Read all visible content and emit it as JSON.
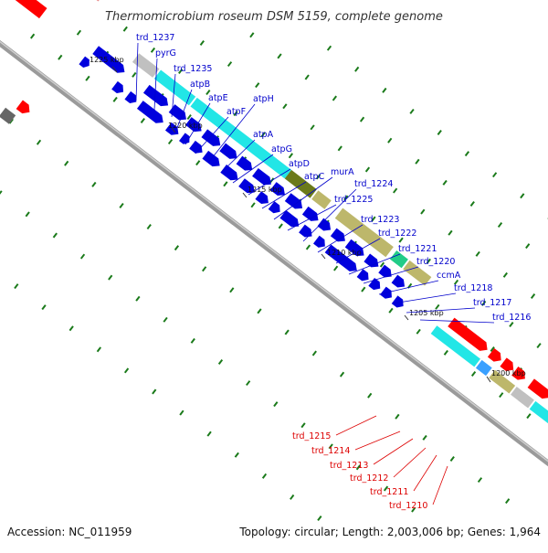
{
  "title": "Thermomicrobium roseum DSM 5159, complete genome",
  "accession": "Accession: NC_011959",
  "topology": "Topology: circular; Length: 2,003,006 bp; Genes: 1,964",
  "colors": {
    "forward_genes": "#0000dd",
    "reverse_genes": "#ff0000",
    "cyan_feature": "#22e6e6",
    "olive_feature": "#6b7a1a",
    "khaki_feature": "#bdb76b",
    "gray_feature": "#c0c0c0",
    "label_upper": "#0000cc",
    "label_lower": "#dd0000",
    "backbone": "#888888",
    "tick_marks": "#1a7a1a"
  },
  "ticks": [
    "1225 kbp",
    "1220 kbp",
    "1215 kbp",
    "1210 kbp",
    "1205 kbp",
    "1200 kbp"
  ],
  "upper_labels": [
    "trd_1237",
    "pyrG",
    "trd_1235",
    "atpB",
    "atpE",
    "atpF",
    "atpH",
    "atpA",
    "atpG",
    "atpD",
    "atpC",
    "murA",
    "trd_1225",
    "trd_1224",
    "trd_1223",
    "trd_1222",
    "trd_1221",
    "trd_1220",
    "ccmA",
    "trd_1218",
    "trd_1217",
    "trd_1216"
  ],
  "lower_labels": [
    "trd_1215",
    "trd_1214",
    "trd_1213",
    "trd_1212",
    "trd_1211",
    "trd_1210"
  ]
}
